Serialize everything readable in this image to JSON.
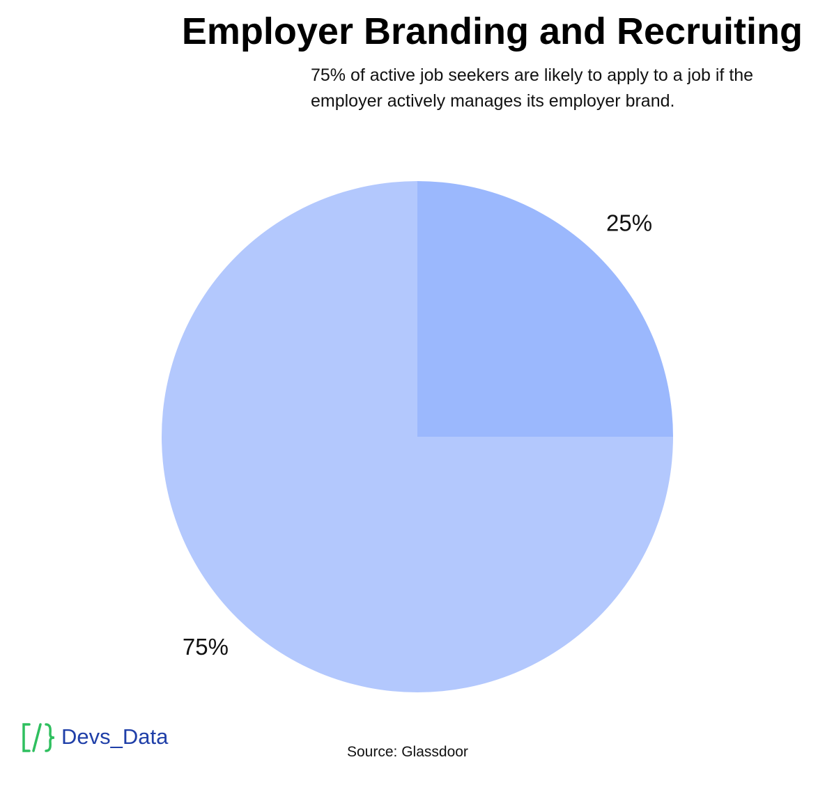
{
  "chart_data": {
    "type": "pie",
    "title": "Employer Branding and Recruiting",
    "subtitle": "75% of active job seekers are likely to apply to a job if the employer actively manages its employer brand.",
    "values": [
      25,
      75
    ],
    "value_labels": [
      "25%",
      "75%"
    ],
    "colors": [
      "#9bb8fd",
      "#b3c8fd"
    ],
    "source": "Source: Glassdoor"
  },
  "logo": "Devs_Data"
}
